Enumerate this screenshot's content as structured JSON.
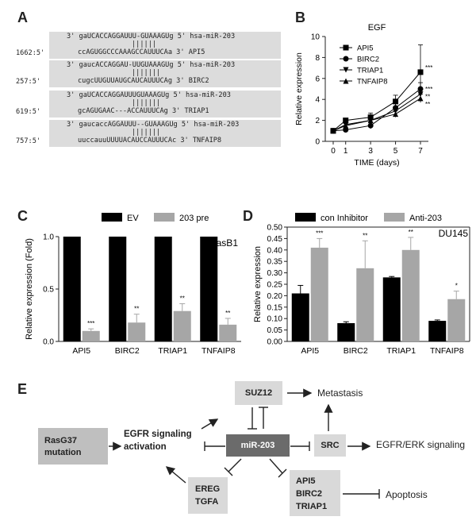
{
  "panels": {
    "a": "A",
    "b": "B",
    "c": "C",
    "d": "D",
    "e": "E"
  },
  "panel_a": {
    "alignments": [
      {
        "pos": "",
        "top": "3' gaUCACCAGGAUUU-GUAAAGUg 5' hsa-miR-203",
        "bars": "||||||",
        "bottom_pos": "1662:5'",
        "bottom": "ccAGUGGCCCAAAGCCAUUUCAa 3' API5"
      },
      {
        "pos": "",
        "top": "3' gaucACCAGGAU-UUGUAAAGUg 5' hsa-miR-203",
        "bars": "|||||||",
        "bottom_pos": "257:5'",
        "bottom": "cugcUUGUUAUGCAUCAUUUCAg 3' BIRC2"
      },
      {
        "pos": "",
        "top": "3' gaUCACCAGGAUUUGUAAAGUg 5' hsa-miR-203",
        "bars": "|||||||",
        "bottom_pos": "619:5'",
        "bottom": "gcAGUGAAC---ACCAUUUCAg 3' TRIAP1"
      },
      {
        "pos": "",
        "top": "3' gaucaccAGGAUUU--GUAAAGUg 5' hsa-miR-203",
        "bars": "|||||||",
        "bottom_pos": "757:5'",
        "bottom": "uuccauuUUUUACAUCCAUUUCAc 3' TNFAIP8"
      }
    ]
  },
  "chart_data": [
    {
      "type": "line",
      "title": "EGF",
      "xlabel": "TIME (days)",
      "ylabel": "Relative expression",
      "x": [
        0,
        1,
        3,
        5,
        7
      ],
      "xticks": [
        "0",
        "1",
        "3",
        "5",
        "7"
      ],
      "ylim": [
        0,
        10
      ],
      "yticks": [
        "0",
        "2",
        "4",
        "6",
        "8",
        "10"
      ],
      "legend_position": "top-left",
      "series": [
        {
          "name": "API5",
          "marker": "square",
          "values": [
            1.0,
            2.0,
            2.3,
            3.8,
            6.6
          ],
          "err": [
            0.1,
            0.2,
            0.4,
            0.6,
            2.6
          ],
          "sig": "***"
        },
        {
          "name": "BIRC2",
          "marker": "circle",
          "values": [
            1.0,
            1.1,
            1.5,
            3.2,
            5.0
          ],
          "err": [
            0.1,
            0.2,
            0.3,
            0.4,
            0.6
          ],
          "sig": "***"
        },
        {
          "name": "TRIAP1",
          "marker": "triangle-down",
          "values": [
            1.0,
            1.6,
            2.0,
            2.9,
            4.5
          ],
          "err": [
            0.1,
            0.2,
            0.3,
            0.3,
            0.4
          ],
          "sig": "**"
        },
        {
          "name": "TNFAIP8",
          "marker": "triangle-up",
          "values": [
            1.0,
            1.5,
            2.0,
            2.6,
            4.1
          ],
          "err": [
            0.1,
            0.2,
            0.3,
            0.3,
            0.4
          ],
          "sig": "**"
        }
      ]
    },
    {
      "type": "bar",
      "title": "",
      "annotation": "RasB1",
      "categories": [
        "API5",
        "BIRC2",
        "TRIAP1",
        "TNFAIP8"
      ],
      "ylabel": "Relative expression (Fold)",
      "ylim": [
        0,
        1.0
      ],
      "yticks": [
        "0.0",
        "0.5",
        "1.0"
      ],
      "legend_position": "top",
      "series": [
        {
          "name": "EV",
          "color": "#000000",
          "values": [
            1.0,
            1.0,
            1.0,
            1.0
          ],
          "err": [
            0,
            0,
            0,
            0
          ]
        },
        {
          "name": "203 pre",
          "color": "#a6a6a6",
          "values": [
            0.1,
            0.18,
            0.29,
            0.16
          ],
          "err": [
            0.02,
            0.08,
            0.07,
            0.06
          ]
        }
      ],
      "significance": [
        "***",
        "**",
        "**",
        "**"
      ]
    },
    {
      "type": "bar",
      "title": "",
      "annotation": "DU145",
      "categories": [
        "API5",
        "BIRC2",
        "TRIAP1",
        "TNFAIP8"
      ],
      "ylabel": "Relative expression",
      "ylim": [
        0,
        0.5
      ],
      "yticks": [
        "0.00",
        "0.05",
        "0.10",
        "0.15",
        "0.20",
        "0.25",
        "0.30",
        "0.35",
        "0.40",
        "0.45",
        "0.50"
      ],
      "legend_position": "top",
      "series": [
        {
          "name": "con Inhibitor",
          "color": "#000000",
          "values": [
            0.21,
            0.08,
            0.28,
            0.09
          ],
          "err": [
            0.035,
            0.006,
            0.004,
            0.004
          ]
        },
        {
          "name": "Anti-203",
          "color": "#a6a6a6",
          "values": [
            0.41,
            0.32,
            0.4,
            0.185
          ],
          "err": [
            0.04,
            0.12,
            0.055,
            0.035
          ]
        }
      ],
      "significance": [
        "***",
        "**",
        "**",
        "*"
      ]
    }
  ],
  "panel_e": {
    "rasg37": "RasG37 mutation",
    "egfr_activation": "EGFR signaling activation",
    "suz12": "SUZ12",
    "metastasis": "Metastasis",
    "mir203": "miR-203",
    "src": "SRC",
    "egfr_erk": "EGFR/ERK signaling",
    "ereg_tgfa": "EREG TGFA",
    "targets": "API5 BIRC2 TRIAP1",
    "apoptosis": "Apoptosis"
  }
}
